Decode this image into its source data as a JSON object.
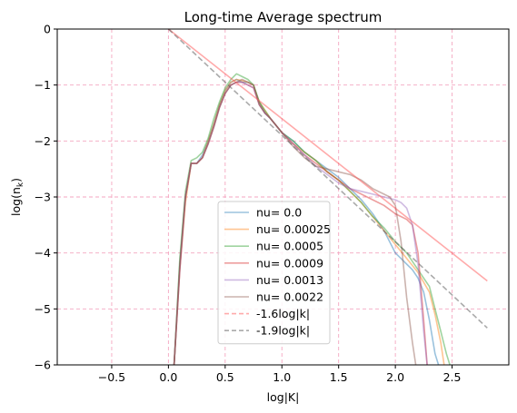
{
  "chart_data": {
    "type": "line",
    "title": "Long-time Average spectrum",
    "xlabel": "log|K|",
    "ylabel_base": "log(n",
    "ylabel_sub": "k",
    "ylabel_end": ")",
    "xlim": [
      -0.98,
      3.0
    ],
    "ylim": [
      -6,
      0
    ],
    "xticks": [
      -0.5,
      0.0,
      0.5,
      1.0,
      1.5,
      2.0,
      2.5
    ],
    "xtick_labels": [
      "−0.5",
      "0.0",
      "0.5",
      "1.0",
      "1.5",
      "2.0",
      "2.5"
    ],
    "yticks": [
      0,
      -1,
      -2,
      -3,
      -4,
      -5,
      -6
    ],
    "ytick_labels": [
      "0",
      "−1",
      "−2",
      "−3",
      "−4",
      "−5",
      "−6"
    ],
    "grid": true,
    "grid_color": "#f4a6c0",
    "legend_placement": "lower center",
    "series": [
      {
        "name": "nu= 0.0",
        "color": "#1f77b4",
        "alpha": 0.45,
        "x": [
          0.05,
          0.1,
          0.15,
          0.2,
          0.25,
          0.3,
          0.35,
          0.4,
          0.45,
          0.5,
          0.55,
          0.6,
          0.65,
          0.7,
          0.75,
          0.8,
          0.85,
          0.9,
          1.0,
          1.1,
          1.2,
          1.3,
          1.4,
          1.5,
          1.6,
          1.7,
          1.8,
          1.9,
          2.0,
          2.05,
          2.1,
          2.15,
          2.2,
          2.25,
          2.3,
          2.35,
          2.38
        ],
        "y": [
          -6.0,
          -4.2,
          -3.0,
          -2.4,
          -2.4,
          -2.25,
          -2.0,
          -1.7,
          -1.35,
          -1.1,
          -0.95,
          -0.9,
          -0.95,
          -0.95,
          -1.0,
          -1.3,
          -1.5,
          -1.6,
          -1.85,
          -2.0,
          -2.2,
          -2.35,
          -2.5,
          -2.65,
          -2.85,
          -3.05,
          -3.3,
          -3.6,
          -4.0,
          -4.1,
          -4.2,
          -4.3,
          -4.45,
          -4.7,
          -5.2,
          -5.8,
          -6.0
        ]
      },
      {
        "name": "nu= 0.00025",
        "color": "#ff7f0e",
        "alpha": 0.45,
        "x": [
          0.05,
          0.1,
          0.15,
          0.2,
          0.25,
          0.3,
          0.35,
          0.4,
          0.45,
          0.5,
          0.55,
          0.6,
          0.65,
          0.7,
          0.75,
          0.8,
          0.85,
          0.9,
          1.0,
          1.1,
          1.2,
          1.3,
          1.4,
          1.5,
          1.6,
          1.7,
          1.8,
          1.9,
          2.0,
          2.1,
          2.2,
          2.3,
          2.35,
          2.4,
          2.43
        ],
        "y": [
          -6.0,
          -4.3,
          -3.1,
          -2.4,
          -2.4,
          -2.3,
          -2.0,
          -1.7,
          -1.35,
          -1.1,
          -0.95,
          -0.9,
          -0.92,
          -0.95,
          -1.0,
          -1.3,
          -1.45,
          -1.6,
          -1.85,
          -2.05,
          -2.2,
          -2.35,
          -2.55,
          -2.7,
          -2.9,
          -3.1,
          -3.35,
          -3.6,
          -3.85,
          -4.1,
          -4.35,
          -4.7,
          -5.1,
          -5.6,
          -6.0
        ]
      },
      {
        "name": "nu= 0.0005",
        "color": "#2ca02c",
        "alpha": 0.45,
        "x": [
          0.05,
          0.1,
          0.15,
          0.2,
          0.25,
          0.3,
          0.35,
          0.4,
          0.45,
          0.5,
          0.55,
          0.6,
          0.65,
          0.7,
          0.75,
          0.8,
          0.85,
          0.9,
          1.0,
          1.1,
          1.2,
          1.3,
          1.4,
          1.5,
          1.6,
          1.7,
          1.8,
          1.9,
          2.0,
          2.1,
          2.2,
          2.3,
          2.35,
          2.4,
          2.45,
          2.48
        ],
        "y": [
          -6.0,
          -4.1,
          -2.9,
          -2.35,
          -2.3,
          -2.2,
          -1.95,
          -1.6,
          -1.3,
          -1.05,
          -0.9,
          -0.8,
          -0.85,
          -0.9,
          -1.0,
          -1.3,
          -1.45,
          -1.6,
          -1.85,
          -2.0,
          -2.2,
          -2.35,
          -2.55,
          -2.7,
          -2.9,
          -3.1,
          -3.35,
          -3.55,
          -3.8,
          -4.0,
          -4.3,
          -4.6,
          -5.0,
          -5.4,
          -5.8,
          -6.0
        ]
      },
      {
        "name": "nu= 0.0009",
        "color": "#d62728",
        "alpha": 0.45,
        "x": [
          0.05,
          0.1,
          0.15,
          0.2,
          0.25,
          0.3,
          0.35,
          0.4,
          0.45,
          0.5,
          0.55,
          0.6,
          0.65,
          0.7,
          0.75,
          0.8,
          0.85,
          0.9,
          1.0,
          1.1,
          1.2,
          1.3,
          1.4,
          1.5,
          1.6,
          1.7,
          1.8,
          1.9,
          2.0,
          2.05,
          2.1,
          2.15,
          2.2,
          2.25,
          2.28
        ],
        "y": [
          -6.0,
          -4.3,
          -3.0,
          -2.4,
          -2.4,
          -2.3,
          -2.05,
          -1.75,
          -1.4,
          -1.15,
          -1.0,
          -0.95,
          -0.95,
          -1.0,
          -1.05,
          -1.35,
          -1.5,
          -1.6,
          -1.85,
          -2.05,
          -2.25,
          -2.4,
          -2.55,
          -2.7,
          -2.85,
          -2.95,
          -3.05,
          -3.15,
          -3.3,
          -3.35,
          -3.4,
          -3.5,
          -4.0,
          -5.2,
          -6.0
        ]
      },
      {
        "name": "nu= 0.0013",
        "color": "#9467bd",
        "alpha": 0.45,
        "x": [
          0.05,
          0.1,
          0.15,
          0.2,
          0.25,
          0.3,
          0.35,
          0.4,
          0.45,
          0.5,
          0.55,
          0.6,
          0.65,
          0.7,
          0.75,
          0.8,
          0.85,
          0.9,
          1.0,
          1.1,
          1.2,
          1.3,
          1.4,
          1.5,
          1.6,
          1.7,
          1.8,
          1.9,
          2.0,
          2.05,
          2.1,
          2.15,
          2.2,
          2.25,
          2.28
        ],
        "y": [
          -6.0,
          -4.3,
          -3.0,
          -2.4,
          -2.4,
          -2.3,
          -2.05,
          -1.75,
          -1.4,
          -1.15,
          -1.0,
          -0.95,
          -0.95,
          -1.0,
          -1.05,
          -1.35,
          -1.5,
          -1.6,
          -1.85,
          -2.05,
          -2.25,
          -2.45,
          -2.6,
          -2.75,
          -2.85,
          -2.9,
          -2.95,
          -3.0,
          -3.05,
          -3.1,
          -3.2,
          -3.5,
          -4.2,
          -5.4,
          -6.0
        ]
      },
      {
        "name": "nu= 0.0022",
        "color": "#8c564b",
        "alpha": 0.45,
        "x": [
          0.05,
          0.1,
          0.15,
          0.2,
          0.25,
          0.3,
          0.35,
          0.4,
          0.45,
          0.5,
          0.55,
          0.6,
          0.65,
          0.7,
          0.75,
          0.8,
          0.85,
          0.9,
          1.0,
          1.1,
          1.2,
          1.3,
          1.4,
          1.5,
          1.6,
          1.7,
          1.8,
          1.9,
          1.95,
          2.0,
          2.05,
          2.1,
          2.15,
          2.18
        ],
        "y": [
          -6.0,
          -4.2,
          -3.0,
          -2.4,
          -2.4,
          -2.3,
          -2.05,
          -1.75,
          -1.4,
          -1.15,
          -1.0,
          -0.95,
          -0.9,
          -0.95,
          -1.0,
          -1.35,
          -1.5,
          -1.6,
          -1.85,
          -2.1,
          -2.3,
          -2.45,
          -2.5,
          -2.55,
          -2.6,
          -2.7,
          -2.85,
          -2.95,
          -3.0,
          -3.15,
          -3.8,
          -4.8,
          -5.6,
          -6.0
        ]
      },
      {
        "name": "-1.6log|k|",
        "color": "#ff5555",
        "alpha": 0.5,
        "dashed_in_legend": true,
        "x": [
          0.0,
          2.81
        ],
        "y": [
          0.0,
          -4.5
        ]
      },
      {
        "name": "-1.9log|k|",
        "color": "#555555",
        "alpha": 0.5,
        "dashed": true,
        "x": [
          0.0,
          2.81
        ],
        "y": [
          0.0,
          -5.34
        ]
      }
    ]
  }
}
